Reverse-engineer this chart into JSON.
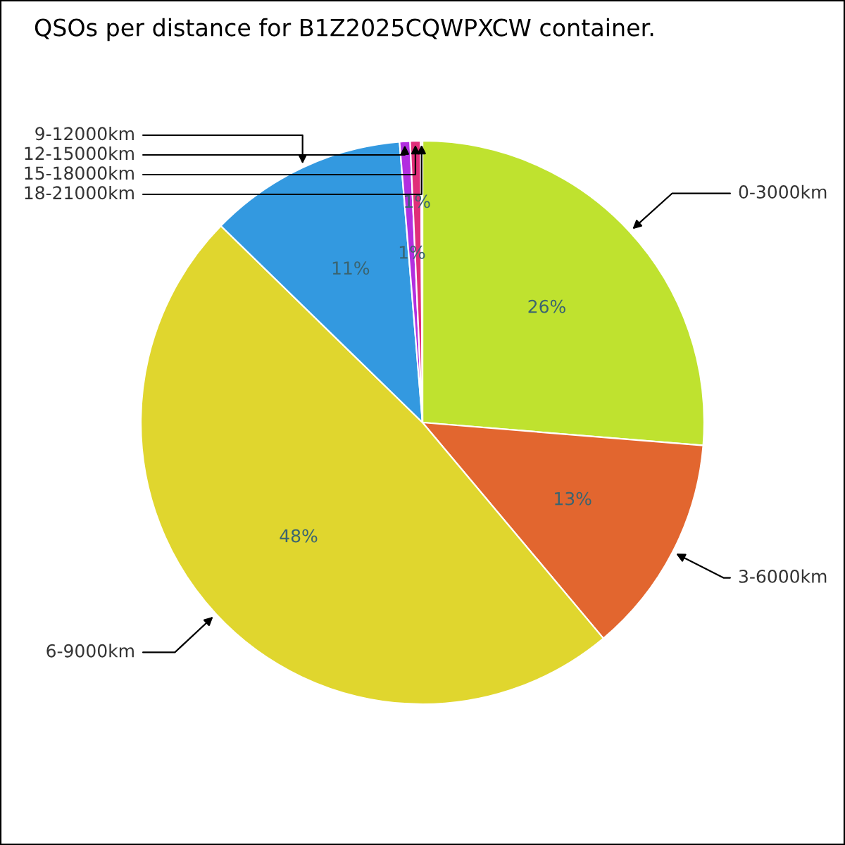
{
  "chart_data": {
    "type": "pie",
    "title": "QSOs per distance for B1Z2025CQWPXCW container.",
    "categories": [
      "0-3000km",
      "3-6000km",
      "6-9000km",
      "9-12000km",
      "12-15000km",
      "15-18000km",
      "18-21000km"
    ],
    "values": [
      26.3,
      12.6,
      48.4,
      11.4,
      0.6,
      0.6,
      0.1
    ],
    "colors": [
      "#bfe22f",
      "#e2662f",
      "#e0d62e",
      "#3399e0",
      "#b22fe0",
      "#e02f7a",
      "#f3dce6"
    ],
    "value_labels": [
      "26%",
      "13%",
      "48%",
      "11%",
      "1%",
      "1%",
      null
    ],
    "legend": false
  }
}
